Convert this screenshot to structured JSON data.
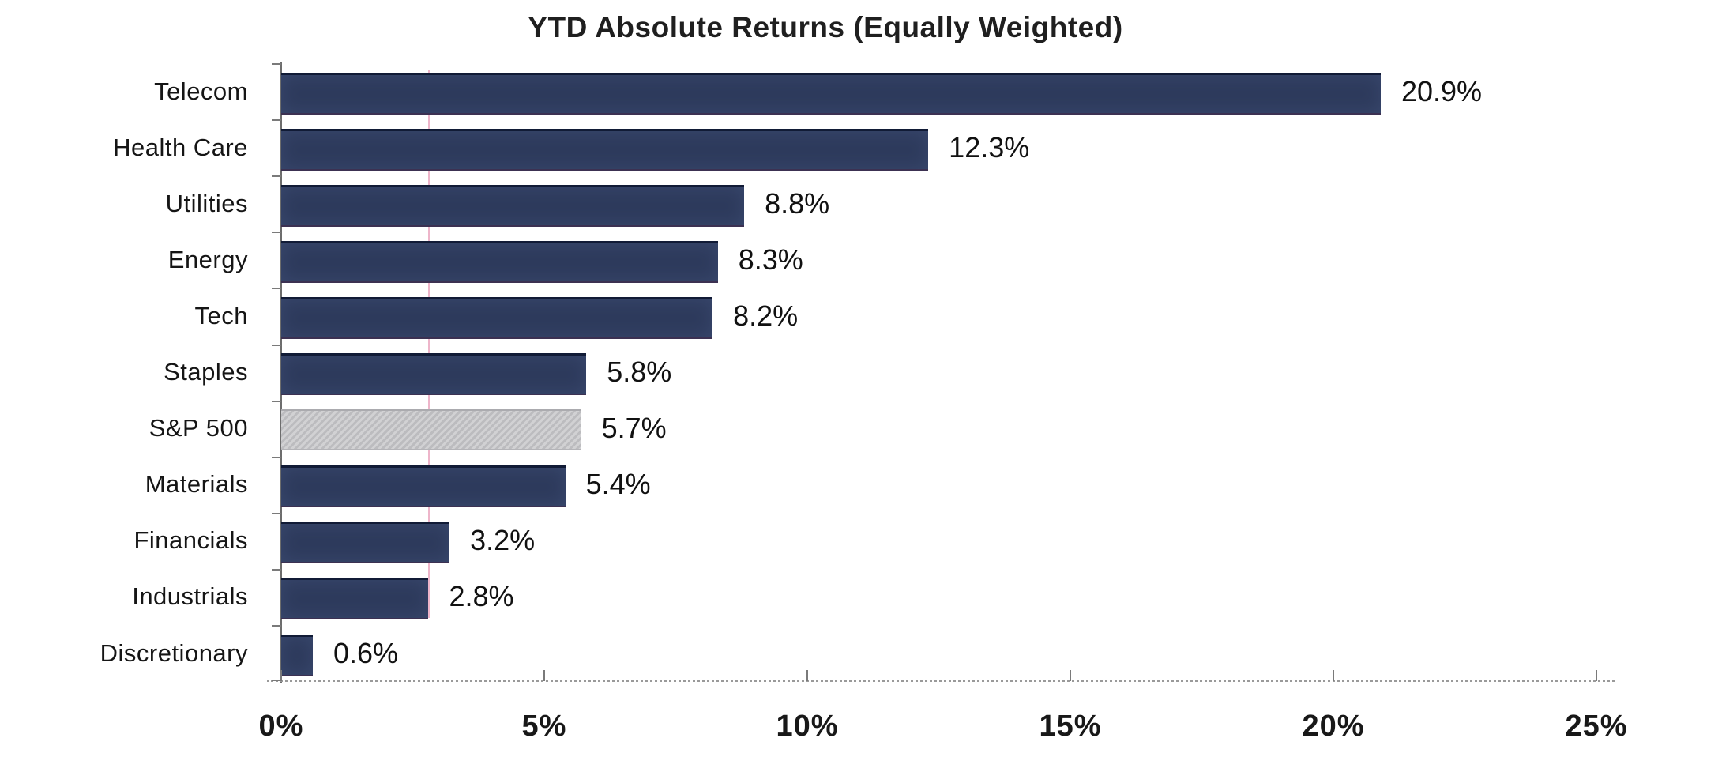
{
  "chart_data": {
    "type": "bar",
    "orientation": "horizontal",
    "title": "YTD Absolute Returns (Equally Weighted)",
    "categories": [
      "Telecom",
      "Health Care",
      "Utilities",
      "Energy",
      "Tech",
      "Staples",
      "S&P 500",
      "Materials",
      "Financials",
      "Industrials",
      "Discretionary"
    ],
    "values": [
      20.9,
      12.3,
      8.8,
      8.3,
      8.2,
      5.8,
      5.7,
      5.4,
      3.2,
      2.8,
      0.6
    ],
    "value_labels": [
      "20.9%",
      "12.3%",
      "8.8%",
      "8.3%",
      "8.2%",
      "5.8%",
      "5.7%",
      "5.4%",
      "3.2%",
      "2.8%",
      "0.6%"
    ],
    "highlight_category": "S&P 500",
    "highlight_index": 6,
    "x_ticks": [
      "0%",
      "5%",
      "10%",
      "15%",
      "20%",
      "25%"
    ],
    "xlim": [
      0,
      25
    ],
    "xlabel": "",
    "ylabel": "",
    "grid": false,
    "legend": false,
    "colors": {
      "bar": "#2e3b5d",
      "bar_edge": "#111b36",
      "benchmark_bar": "#c6c6c9",
      "text": "#151515",
      "axis": "#6d6d6d"
    }
  }
}
